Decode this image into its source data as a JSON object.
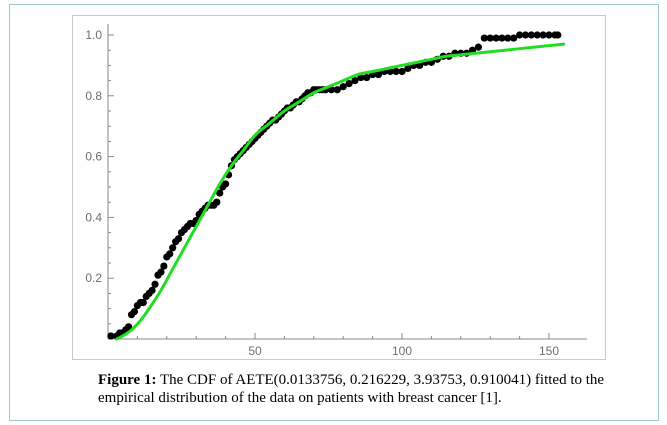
{
  "figure": {
    "caption_label": "Figure 1:",
    "caption_text": " The CDF of AETE(0.0133756, 0.216229, 3.93753, 0.910041) fitted to the empirical distribution of the data on patients with breast cancer [1].",
    "frame_border_color": "#9fc9c9"
  },
  "chart_data": {
    "type": "scatter",
    "title": "",
    "xlabel": "",
    "ylabel": "",
    "xlim": [
      0,
      158
    ],
    "ylim": [
      0,
      1.0
    ],
    "x_ticks": [
      50,
      100,
      150
    ],
    "x_tick_labels": [
      "50",
      "100",
      "150"
    ],
    "y_ticks": [
      0.2,
      0.4,
      0.6,
      0.8,
      1.0
    ],
    "y_tick_labels": [
      "0.2",
      "0.4",
      "0.6",
      "0.8",
      "1.0"
    ],
    "grid": false,
    "legend": "none",
    "series": [
      {
        "kind": "empirical",
        "color": "#000000",
        "points": [
          [
            1,
            0.01
          ],
          [
            3,
            0.01
          ],
          [
            4,
            0.02
          ],
          [
            5,
            0.02
          ],
          [
            6,
            0.03
          ],
          [
            7,
            0.04
          ],
          [
            8,
            0.08
          ],
          [
            9,
            0.09
          ],
          [
            10,
            0.11
          ],
          [
            11,
            0.12
          ],
          [
            12,
            0.12
          ],
          [
            13,
            0.14
          ],
          [
            14,
            0.15
          ],
          [
            15,
            0.16
          ],
          [
            16,
            0.18
          ],
          [
            17,
            0.21
          ],
          [
            18,
            0.22
          ],
          [
            19,
            0.24
          ],
          [
            20,
            0.27
          ],
          [
            21,
            0.28
          ],
          [
            22,
            0.3
          ],
          [
            23,
            0.32
          ],
          [
            24,
            0.33
          ],
          [
            25,
            0.35
          ],
          [
            26,
            0.36
          ],
          [
            27,
            0.37
          ],
          [
            28,
            0.38
          ],
          [
            29,
            0.38
          ],
          [
            30,
            0.39
          ],
          [
            31,
            0.41
          ],
          [
            32,
            0.42
          ],
          [
            33,
            0.43
          ],
          [
            34,
            0.44
          ],
          [
            35,
            0.44
          ],
          [
            36,
            0.44
          ],
          [
            37,
            0.45
          ],
          [
            38,
            0.48
          ],
          [
            39,
            0.5
          ],
          [
            40,
            0.51
          ],
          [
            41,
            0.54
          ],
          [
            42,
            0.57
          ],
          [
            43,
            0.59
          ],
          [
            44,
            0.6
          ],
          [
            45,
            0.61
          ],
          [
            46,
            0.62
          ],
          [
            47,
            0.63
          ],
          [
            48,
            0.64
          ],
          [
            49,
            0.65
          ],
          [
            50,
            0.66
          ],
          [
            51,
            0.67
          ],
          [
            52,
            0.68
          ],
          [
            53,
            0.69
          ],
          [
            54,
            0.7
          ],
          [
            55,
            0.71
          ],
          [
            56,
            0.72
          ],
          [
            57,
            0.72
          ],
          [
            58,
            0.73
          ],
          [
            59,
            0.74
          ],
          [
            60,
            0.75
          ],
          [
            61,
            0.76
          ],
          [
            62,
            0.76
          ],
          [
            63,
            0.77
          ],
          [
            64,
            0.78
          ],
          [
            65,
            0.78
          ],
          [
            66,
            0.79
          ],
          [
            67,
            0.8
          ],
          [
            68,
            0.81
          ],
          [
            69,
            0.81
          ],
          [
            70,
            0.82
          ],
          [
            71,
            0.82
          ],
          [
            72,
            0.82
          ],
          [
            73,
            0.82
          ],
          [
            74,
            0.82
          ],
          [
            76,
            0.82
          ],
          [
            78,
            0.82
          ],
          [
            80,
            0.83
          ],
          [
            82,
            0.84
          ],
          [
            84,
            0.85
          ],
          [
            86,
            0.86
          ],
          [
            88,
            0.86
          ],
          [
            90,
            0.87
          ],
          [
            92,
            0.87
          ],
          [
            94,
            0.88
          ],
          [
            96,
            0.88
          ],
          [
            98,
            0.88
          ],
          [
            100,
            0.88
          ],
          [
            102,
            0.89
          ],
          [
            104,
            0.9
          ],
          [
            106,
            0.9
          ],
          [
            108,
            0.91
          ],
          [
            110,
            0.91
          ],
          [
            112,
            0.92
          ],
          [
            114,
            0.93
          ],
          [
            116,
            0.93
          ],
          [
            118,
            0.94
          ],
          [
            120,
            0.94
          ],
          [
            122,
            0.94
          ],
          [
            124,
            0.95
          ],
          [
            126,
            0.96
          ],
          [
            128,
            0.99
          ],
          [
            130,
            0.99
          ],
          [
            132,
            0.99
          ],
          [
            134,
            0.99
          ],
          [
            136,
            0.99
          ],
          [
            138,
            0.99
          ],
          [
            140,
            1.0
          ],
          [
            142,
            1.0
          ],
          [
            144,
            1.0
          ],
          [
            146,
            1.0
          ],
          [
            148,
            1.0
          ],
          [
            150,
            1.0
          ],
          [
            152,
            1.0
          ],
          [
            153,
            1.0
          ]
        ]
      },
      {
        "kind": "fitted-cdf",
        "color": "#22dd22",
        "points": [
          [
            3,
            0.0
          ],
          [
            5,
            0.01
          ],
          [
            8,
            0.03
          ],
          [
            11,
            0.06
          ],
          [
            14,
            0.1
          ],
          [
            18,
            0.16
          ],
          [
            22,
            0.23
          ],
          [
            26,
            0.3
          ],
          [
            30,
            0.37
          ],
          [
            34,
            0.44
          ],
          [
            38,
            0.51
          ],
          [
            42,
            0.57
          ],
          [
            46,
            0.62
          ],
          [
            50,
            0.67
          ],
          [
            55,
            0.71
          ],
          [
            60,
            0.75
          ],
          [
            65,
            0.78
          ],
          [
            70,
            0.81
          ],
          [
            75,
            0.83
          ],
          [
            80,
            0.85
          ],
          [
            85,
            0.87
          ],
          [
            90,
            0.88
          ],
          [
            95,
            0.89
          ],
          [
            100,
            0.9
          ],
          [
            105,
            0.91
          ],
          [
            110,
            0.92
          ],
          [
            115,
            0.93
          ],
          [
            120,
            0.935
          ],
          [
            125,
            0.94
          ],
          [
            130,
            0.945
          ],
          [
            135,
            0.95
          ],
          [
            140,
            0.955
          ],
          [
            145,
            0.96
          ],
          [
            150,
            0.965
          ],
          [
            155,
            0.97
          ]
        ]
      }
    ]
  }
}
